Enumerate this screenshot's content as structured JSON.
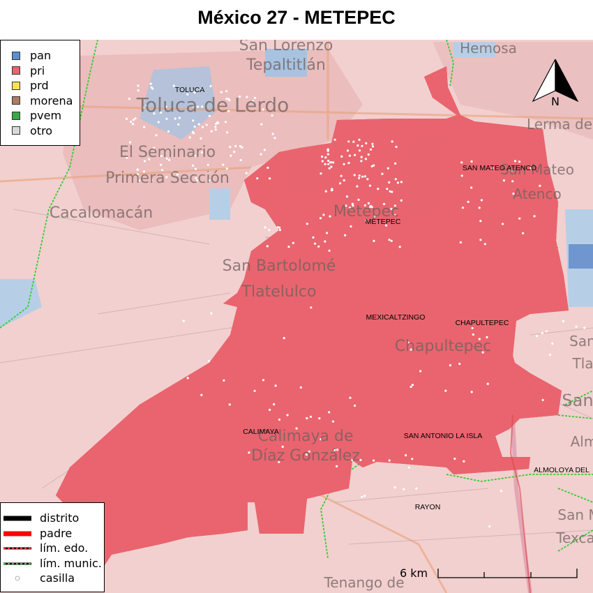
{
  "title": "México 27 - METEPEC",
  "party_legend": [
    {
      "label": "pan",
      "color": "#5b8fd1"
    },
    {
      "label": "pri",
      "color": "#e8646e"
    },
    {
      "label": "prd",
      "color": "#f7e15a"
    },
    {
      "label": "morena",
      "color": "#b07b62"
    },
    {
      "label": "pvem",
      "color": "#3aa849"
    },
    {
      "label": "otro",
      "color": "#d9d9d9"
    }
  ],
  "line_legend": [
    {
      "label": "distrito",
      "style": "thick-black"
    },
    {
      "label": "padre",
      "style": "thick-red"
    },
    {
      "label": "lím. edo.",
      "style": "red-dashed"
    },
    {
      "label": "lím. munic.",
      "style": "green-dashed"
    },
    {
      "label": "casilla",
      "style": "point"
    }
  ],
  "municipalities": [
    {
      "name": "TOLUCA"
    },
    {
      "name": "SAN MATEO ATENCO"
    },
    {
      "name": "METEPEC"
    },
    {
      "name": "MEXICALTZINGO"
    },
    {
      "name": "CHAPULTEPEC"
    },
    {
      "name": "CALIMAYA"
    },
    {
      "name": "SAN ANTONIO LA ISLA"
    },
    {
      "name": "ALMOLOYA DEL"
    },
    {
      "name": "RAYON"
    }
  ],
  "basemap_places": [
    {
      "name": "San Lorenzo"
    },
    {
      "name": "Tepaltitlán"
    },
    {
      "name": "Hemosa"
    },
    {
      "name": "Toluca de Lerdo"
    },
    {
      "name": "El Seminario"
    },
    {
      "name": "Primera Sección"
    },
    {
      "name": "Cacalomacán"
    },
    {
      "name": "Metepec"
    },
    {
      "name": "San Bartolomé"
    },
    {
      "name": "Tlatelulco"
    },
    {
      "name": "Chapultepec"
    },
    {
      "name": "Calimaya de"
    },
    {
      "name": "Díaz González"
    },
    {
      "name": "Santa"
    },
    {
      "name": "Tlalti"
    },
    {
      "name": "San"
    },
    {
      "name": "Alm"
    },
    {
      "name": "San M"
    },
    {
      "name": "Texca"
    },
    {
      "name": "Tenango de"
    },
    {
      "name": "Lerma de V"
    },
    {
      "name": "San Mateo"
    },
    {
      "name": "Atenco"
    }
  ],
  "north_arrow": {
    "label": "N",
    "icon": "north-arrow-icon"
  },
  "scalebar": {
    "label": "6 km"
  },
  "map": {
    "base_color": "#f2d0cf",
    "district_fill": "#e8646e",
    "pan_fill": "#5b8fd1"
  }
}
